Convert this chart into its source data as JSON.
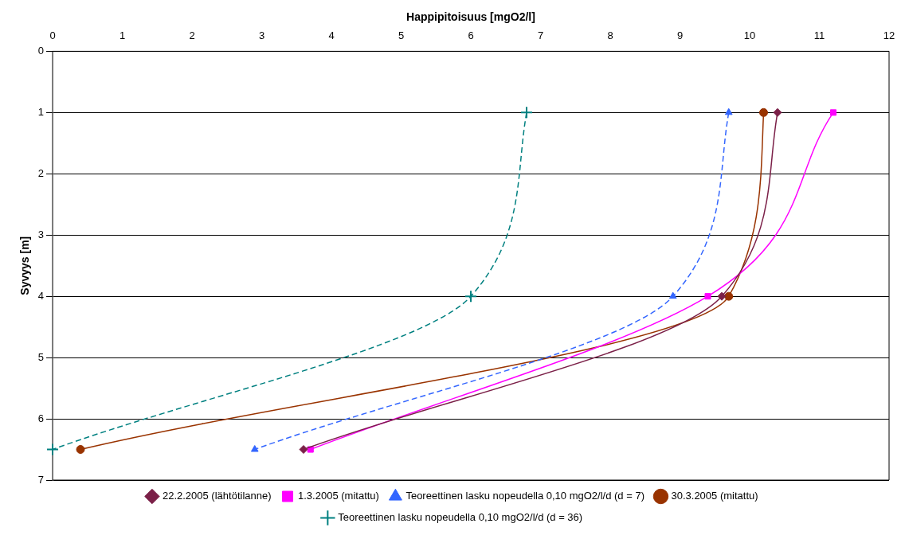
{
  "chart_data": {
    "type": "line",
    "xlabel": "Happipitoisuus [mgO2/l]",
    "ylabel": "Syvyys [m]",
    "xlim": [
      0,
      12
    ],
    "xticks": [
      0,
      1,
      2,
      3,
      4,
      5,
      6,
      7,
      8,
      9,
      10,
      11,
      12
    ],
    "ylim": [
      7,
      0
    ],
    "yticks": [
      0,
      1,
      2,
      3,
      4,
      5,
      6,
      7
    ],
    "grid": "y",
    "legend": "bottom",
    "series": [
      {
        "name": "22.2.2005 (lähtötilanne)",
        "color": "#7b2048",
        "marker": "diamond",
        "line_style": "solid",
        "x": [
          10.4,
          9.6,
          3.6
        ],
        "values": [
          1,
          4,
          6.5
        ]
      },
      {
        "name": "1.3.2005 (mitattu)",
        "color": "#ff00ff",
        "marker": "square",
        "line_style": "solid",
        "x": [
          11.2,
          9.4,
          3.7
        ],
        "values": [
          1,
          4,
          6.5
        ]
      },
      {
        "name": "Teoreettinen lasku nopeudella 0,10 mgO2/l/d (d = 7)",
        "color": "#3366ff",
        "marker": "triangle",
        "line_style": "dashed",
        "x": [
          9.7,
          8.9,
          2.9
        ],
        "values": [
          1,
          4,
          6.5
        ]
      },
      {
        "name": "30.3.2005 (mitattu)",
        "color": "#993300",
        "marker": "circle",
        "line_style": "solid",
        "x": [
          10.2,
          9.7,
          0.4
        ],
        "values": [
          1,
          4,
          6.5
        ]
      },
      {
        "name": "Teoreettinen lasku nopeudella 0,10 mgO2/l/d (d = 36)",
        "color": "#008080",
        "marker": "cross",
        "line_style": "dashed",
        "x": [
          6.8,
          6.0,
          0
        ],
        "values": [
          1,
          4,
          6.5
        ]
      }
    ]
  }
}
